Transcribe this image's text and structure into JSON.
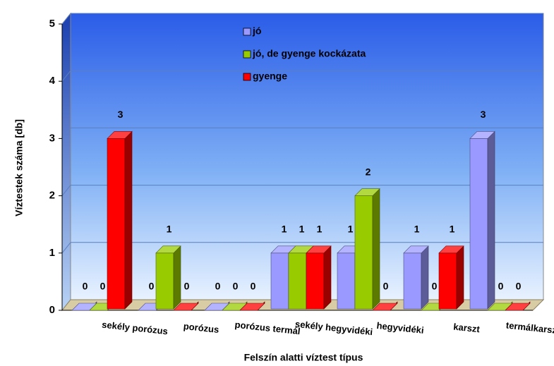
{
  "chart_data": {
    "type": "bar3d",
    "xlabel": "Felszín alatti víztest típus",
    "ylabel": "Víztestek száma [db]",
    "categories": [
      "sekély porózus",
      "porózus",
      "porózus termál",
      "sekély hegyvidéki",
      "hegyvidéki",
      "karszt",
      "termálkarszt"
    ],
    "series": [
      {
        "name": "jó",
        "color": "#9999ff",
        "values": [
          0,
          0,
          0,
          1,
          1,
          1,
          3
        ]
      },
      {
        "name": "jó, de gyenge kockázata",
        "color": "#99cc00",
        "values": [
          0,
          1,
          0,
          1,
          2,
          0,
          0
        ]
      },
      {
        "name": "gyenge",
        "color": "#ff0000",
        "values": [
          3,
          0,
          0,
          1,
          0,
          1,
          0
        ]
      }
    ],
    "ylim": [
      0,
      5
    ],
    "yticks": [
      0,
      1,
      2,
      3,
      4,
      5
    ],
    "grid": true,
    "legend": "top"
  }
}
